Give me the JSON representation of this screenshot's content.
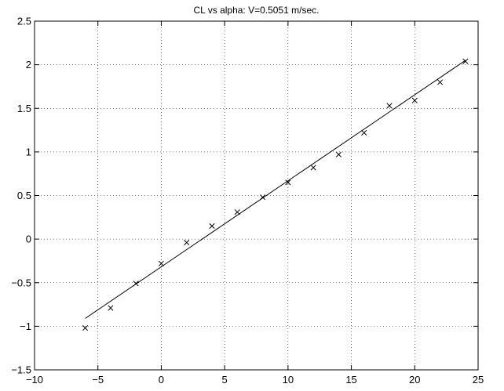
{
  "chart_data": {
    "type": "scatter",
    "title": "CL vs alpha: V=0.5051 m/sec.",
    "xlabel": "",
    "ylabel": "",
    "xlim": [
      -10,
      25
    ],
    "ylim": [
      -1.5,
      2.5
    ],
    "xticks": [
      -10,
      -5,
      0,
      5,
      10,
      15,
      20,
      25
    ],
    "yticks": [
      -1.5,
      -1,
      -0.5,
      0,
      0.5,
      1,
      1.5,
      2,
      2.5
    ],
    "xtick_labels": [
      "−10",
      "−5",
      "0",
      "5",
      "10",
      "15",
      "20",
      "25"
    ],
    "ytick_labels": [
      "−1.5",
      "−1",
      "−0.5",
      "0",
      "0.5",
      "1",
      "1.5",
      "2",
      "2.5"
    ],
    "grid": true,
    "grid_style": "dotted",
    "marker": "x",
    "series": [
      {
        "kind": "points",
        "x": [
          -6,
          -4,
          -2,
          0,
          2,
          4,
          6,
          8,
          10,
          12,
          14,
          16,
          18,
          20,
          22,
          24
        ],
        "y": [
          -1.02,
          -0.79,
          -0.51,
          -0.28,
          -0.04,
          0.15,
          0.31,
          0.48,
          0.65,
          0.82,
          0.97,
          1.22,
          1.53,
          1.59,
          1.8,
          2.04
        ]
      },
      {
        "kind": "fit-line",
        "x": [
          -6,
          24
        ],
        "y": [
          -0.91,
          2.05
        ]
      }
    ],
    "colors": {
      "marks": "#000000",
      "grid": "#000000",
      "background": "#ffffff"
    }
  }
}
